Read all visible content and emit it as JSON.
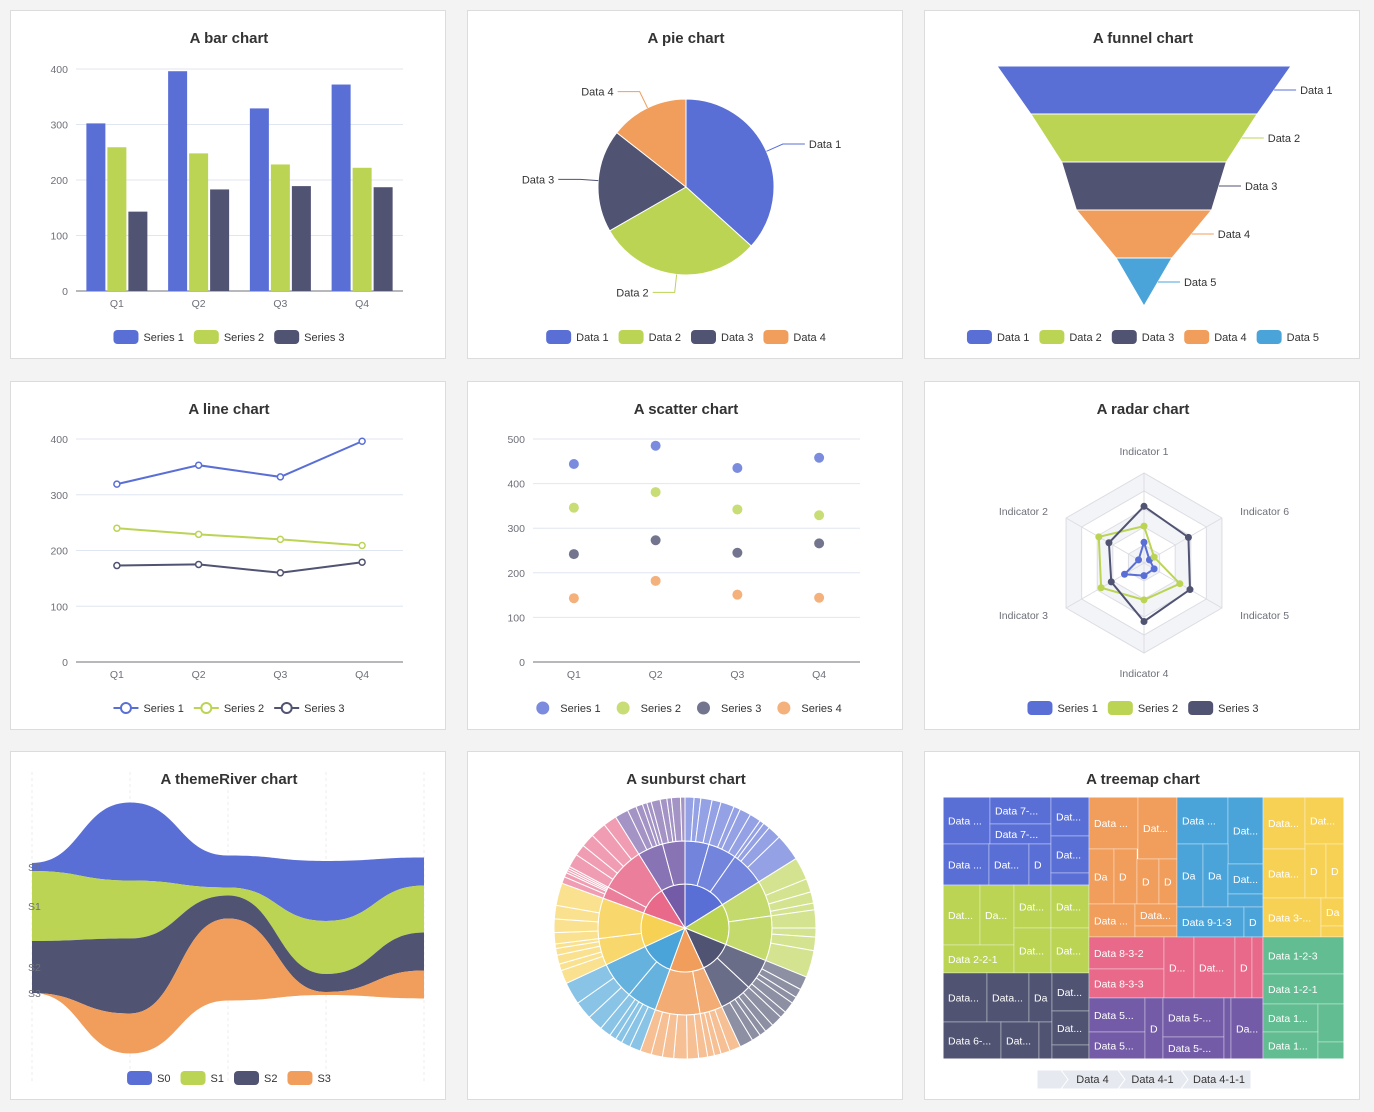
{
  "chart_data": [
    {
      "type": "bar",
      "title": "A bar chart",
      "categories": [
        "Q1",
        "Q2",
        "Q3",
        "Q4"
      ],
      "ylim": [
        0,
        400
      ],
      "yticks": [
        "0",
        "100",
        "200",
        "300",
        "400"
      ],
      "grid": true,
      "legend_position": "bottom",
      "series": [
        {
          "name": "Series 1",
          "color": "#5a6fd6",
          "values": [
            302,
            396,
            329,
            372
          ]
        },
        {
          "name": "Series 2",
          "color": "#bbd454",
          "values": [
            259,
            248,
            228,
            222
          ]
        },
        {
          "name": "Series 3",
          "color": "#505372",
          "values": [
            143,
            183,
            189,
            187
          ]
        }
      ]
    },
    {
      "type": "pie",
      "title": "A pie chart",
      "legend_position": "bottom",
      "slices": [
        {
          "name": "Data 1",
          "color": "#5a6fd6",
          "value": 36.7
        },
        {
          "name": "Data 2",
          "color": "#bbd454",
          "value": 30.0
        },
        {
          "name": "Data 3",
          "color": "#505372",
          "value": 18.9
        },
        {
          "name": "Data 4",
          "color": "#f19d5b",
          "value": 14.4
        }
      ]
    },
    {
      "type": "funnel",
      "title": "A funnel chart",
      "legend_position": "bottom",
      "stages": [
        {
          "name": "Data 1",
          "color": "#5a6fd6",
          "value": 100
        },
        {
          "name": "Data 2",
          "color": "#bbd454",
          "value": 77
        },
        {
          "name": "Data 3",
          "color": "#505372",
          "value": 56
        },
        {
          "name": "Data 4",
          "color": "#f19d5b",
          "value": 46
        },
        {
          "name": "Data 5",
          "color": "#4aa4d9",
          "value": 19
        }
      ]
    },
    {
      "type": "line",
      "title": "A line chart",
      "categories": [
        "Q1",
        "Q2",
        "Q3",
        "Q4"
      ],
      "ylim": [
        0,
        400
      ],
      "yticks": [
        "0",
        "100",
        "200",
        "300",
        "400"
      ],
      "grid": true,
      "legend_position": "bottom",
      "series": [
        {
          "name": "Series 1",
          "color": "#5a6fd6",
          "values": [
            319,
            353,
            332,
            396
          ]
        },
        {
          "name": "Series 2",
          "color": "#bbd454",
          "values": [
            240,
            229,
            220,
            209
          ]
        },
        {
          "name": "Series 3",
          "color": "#505372",
          "values": [
            173,
            175,
            160,
            179
          ]
        }
      ]
    },
    {
      "type": "scatter",
      "title": "A scatter chart",
      "categories": [
        "Q1",
        "Q2",
        "Q3",
        "Q4"
      ],
      "ylim": [
        0,
        500
      ],
      "yticks": [
        "0",
        "100",
        "200",
        "300",
        "400",
        "500"
      ],
      "grid": true,
      "legend_position": "bottom",
      "series": [
        {
          "name": "Series 1",
          "color": "#5a6fd6",
          "values": [
            444,
            485,
            435,
            458
          ]
        },
        {
          "name": "Series 2",
          "color": "#bbd454",
          "values": [
            346,
            381,
            342,
            329
          ]
        },
        {
          "name": "Series 3",
          "color": "#505372",
          "values": [
            242,
            273,
            245,
            266
          ]
        },
        {
          "name": "Series 4",
          "color": "#f19d5b",
          "values": [
            143,
            182,
            151,
            144
          ]
        }
      ]
    },
    {
      "type": "radar",
      "title": "A radar chart",
      "max": 100,
      "indicators": [
        "Indicator 1",
        "Indicator 2",
        "Indicator 3",
        "Indicator 4",
        "Indicator 5",
        "Indicator 6"
      ],
      "legend_position": "bottom",
      "series": [
        {
          "name": "Series 1",
          "color": "#5a6fd6",
          "values": [
            23,
            7,
            25,
            14,
            13,
            7
          ]
        },
        {
          "name": "Series 2",
          "color": "#bbd454",
          "values": [
            41,
            58,
            55,
            41,
            46,
            13
          ]
        },
        {
          "name": "Series 3",
          "color": "#505372",
          "values": [
            63,
            45,
            42,
            65,
            59,
            57
          ]
        }
      ]
    },
    {
      "type": "area",
      "subtype": "themeRiver",
      "title": "A themeRiver chart",
      "legend_position": "bottom",
      "series": [
        {
          "name": "S0",
          "color": "#5a6fd6",
          "values": [
            8,
            78,
            32,
            60,
            28
          ]
        },
        {
          "name": "S1",
          "color": "#bbd454",
          "values": [
            70,
            58,
            8,
            53,
            47
          ]
        },
        {
          "name": "S2",
          "color": "#505372",
          "values": [
            52,
            75,
            23,
            18,
            38
          ]
        },
        {
          "name": "S3",
          "color": "#f19d5b",
          "values": [
            0,
            40,
            82,
            3,
            28
          ]
        }
      ]
    },
    {
      "type": "sunburst",
      "title": "A sunburst chart",
      "groups": [
        {
          "color": "#5a6fd6",
          "children": [
            [
              4,
              3,
              5,
              4
            ],
            [
              6,
              3,
              5,
              5
            ],
            [
              2,
              3,
              6,
              12
            ]
          ]
        },
        {
          "color": "#bbd454",
          "children": [
            [
              10,
              6,
              5,
              3
            ],
            [
              8,
              4,
              6,
              12
            ]
          ]
        },
        {
          "color": "#505372",
          "children": [
            [
              6,
              4,
              3,
              5,
              3
            ],
            [
              5,
              4,
              3,
              4,
              6
            ]
          ]
        },
        {
          "color": "#f19d5b",
          "children": [
            [
              5,
              4,
              3,
              3
            ],
            [
              4,
              5,
              6,
              5,
              5,
              5
            ]
          ]
        },
        {
          "color": "#4aa4d9",
          "children": [
            [
              5,
              4,
              3,
              3,
              5
            ],
            [
              7,
              8,
              10
            ]
          ]
        },
        {
          "color": "#f7d154",
          "children": [
            [
              6,
              3,
              4,
              3,
              2
            ],
            [
              5,
              6,
              6,
              10
            ]
          ]
        },
        {
          "color": "#e8698a",
          "children": [
            [
              3,
              2,
              1,
              1,
              1
            ],
            [
              6,
              5,
              6,
              7,
              6
            ]
          ]
        },
        {
          "color": "#735ba8",
          "children": [
            [
              6,
              4,
              3,
              2,
              2
            ],
            [
              4,
              3,
              2,
              4,
              2
            ]
          ]
        }
      ]
    },
    {
      "type": "treemap",
      "title": "A treemap chart",
      "groups": [
        {
          "color": "#5a6fd6",
          "cells": [
            "Data ...",
            "Data 7-...",
            "Data 7-...",
            "Dat...",
            "Data ...",
            "Dat...",
            "D",
            "Dat...",
            ""
          ]
        },
        {
          "color": "#bbd454",
          "cells": [
            "Dat...",
            "Da...",
            "Dat...",
            "Dat...",
            "Data 2-2-1",
            "Dat...",
            "Dat..."
          ]
        },
        {
          "color": "#505372",
          "cells": [
            "Data...",
            "Data...",
            "Da",
            "Dat...",
            "Data 6-...",
            "Dat...",
            "",
            "Dat...",
            ""
          ]
        },
        {
          "color": "#f19d5b",
          "cells": [
            "Data ...",
            "Dat...",
            "Da",
            "D",
            "D",
            "D",
            "Data ...",
            "Data...",
            ""
          ]
        },
        {
          "color": "#4aa4d9",
          "cells": [
            "Data ...",
            "Dat...",
            "Da",
            "Da",
            "Dat...",
            "",
            "Data 9-1-3",
            "D"
          ]
        },
        {
          "color": "#f7d154",
          "cells": [
            "Data...",
            "Dat...",
            "Data...",
            "D",
            "D",
            "Data 3-...",
            "Da",
            ""
          ]
        },
        {
          "color": "#e8698a",
          "cells": [
            "Data 8-3-2",
            "Data 8-3-3",
            "D...",
            "Dat...",
            "D",
            ""
          ]
        },
        {
          "color": "#735ba8",
          "cells": [
            "Data 5...",
            "Data 5...",
            "D",
            "Data 5-...",
            "Data 5-...",
            "",
            "Da..."
          ]
        },
        {
          "color": "#62bd92",
          "cells": [
            "Data 1-2-3",
            "Data 1-2-1",
            "Data 1...",
            "Data 1...",
            "",
            ""
          ]
        }
      ],
      "breadcrumb": [
        "",
        "Data 4",
        "Data 4-1",
        "Data 4-1-1"
      ]
    }
  ]
}
